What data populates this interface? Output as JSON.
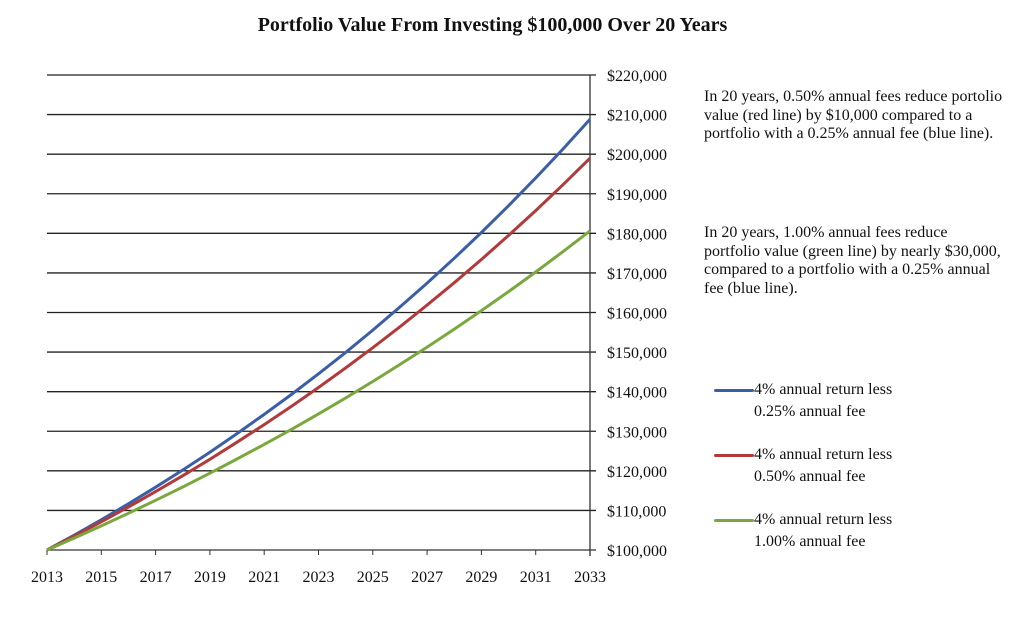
{
  "chart_data": {
    "type": "line",
    "title": "Portfolio Value From Investing $100,000 Over 20 Years",
    "xlabel": "",
    "ylabel": "",
    "x": [
      2013,
      2014,
      2015,
      2016,
      2017,
      2018,
      2019,
      2020,
      2021,
      2022,
      2023,
      2024,
      2025,
      2026,
      2027,
      2028,
      2029,
      2030,
      2031,
      2032,
      2033
    ],
    "xlim": [
      2013,
      2033
    ],
    "ylim": [
      100000,
      220000
    ],
    "x_ticks": [
      "2013",
      "2015",
      "2017",
      "2019",
      "2021",
      "2023",
      "2025",
      "2027",
      "2029",
      "2031",
      "2033"
    ],
    "y_ticks": [
      "$100,000",
      "$110,000",
      "$120,000",
      "$130,000",
      "$140,000",
      "$150,000",
      "$160,000",
      "$170,000",
      "$180,000",
      "$190,000",
      "$200,000",
      "$210,000",
      "$220,000"
    ],
    "grid": "horizontal",
    "y_axis_side": "right",
    "legend_placement": "right",
    "series": [
      {
        "name": "4% annual return less 0.25% annual fee",
        "name_line1": "4% annual return less",
        "name_line2": "0.25% annual fee",
        "color": "#3b5ea8",
        "values": [
          100000,
          103750,
          107641,
          111677,
          115865,
          120210,
          124718,
          129395,
          134247,
          139281,
          144504,
          149923,
          155545,
          161378,
          167430,
          173709,
          180223,
          186981,
          193993,
          201268,
          208815
        ]
      },
      {
        "name": "4% annual return less 0.50% annual fee",
        "name_line1": "4% annual return less",
        "name_line2": "0.50% annual fee",
        "color": "#b23a3a",
        "values": [
          100000,
          103500,
          107123,
          110872,
          114752,
          118769,
          122926,
          127228,
          131681,
          136290,
          141060,
          145997,
          151107,
          156396,
          161869,
          167535,
          173399,
          179468,
          185749,
          192250,
          198979
        ]
      },
      {
        "name": "4% annual return less 1.00% annual fee",
        "name_line1": "4% annual return less",
        "name_line2": "1.00% annual fee",
        "color": "#7aa83e",
        "values": [
          100000,
          103000,
          106090,
          109273,
          112551,
          115927,
          119405,
          122987,
          126677,
          130477,
          134392,
          138423,
          142576,
          146853,
          151259,
          155797,
          160471,
          165285,
          170243,
          175351,
          180611
        ]
      }
    ],
    "annotations": [
      "In 20 years,  0.50% annual fees reduce portolio value (red line) by $10,000 compared to a portfolio with a 0.25% annual fee (blue line).",
      "In 20 years, 1.00% annual fees reduce portfolio value (green line) by nearly $30,000, compared to a portfolio with a 0.25% annual fee (blue line)."
    ]
  }
}
